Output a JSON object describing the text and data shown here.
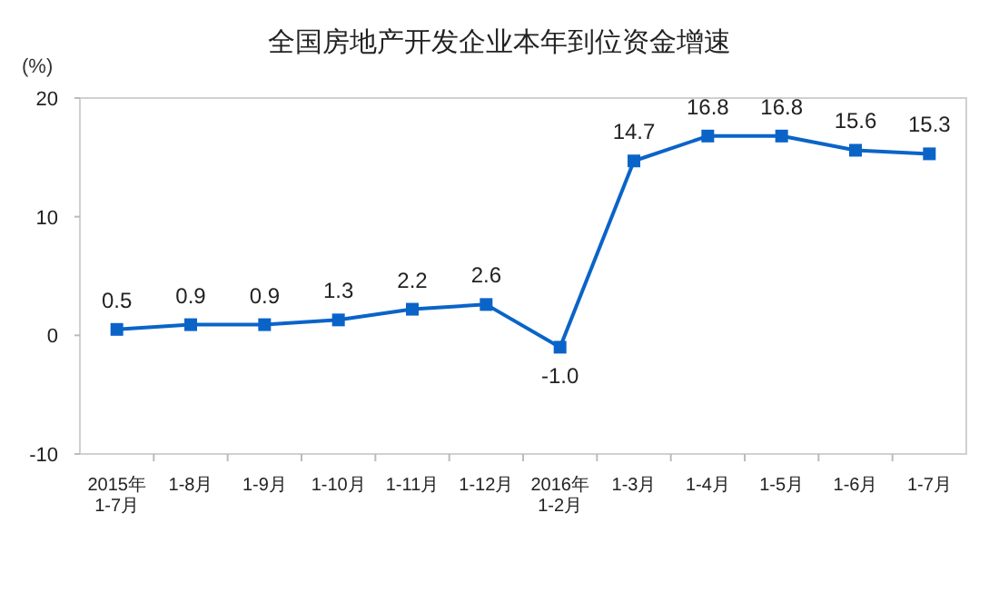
{
  "chart_data": {
    "type": "line",
    "title": "全国房地产开发企业本年到位资金增速",
    "ylabel": "(%)",
    "categories": [
      "2015年\n1-7月",
      "1-8月",
      "1-9月",
      "1-10月",
      "1-11月",
      "1-12月",
      "2016年\n1-2月",
      "1-3月",
      "1-4月",
      "1-5月",
      "1-6月",
      "1-7月"
    ],
    "series": [
      {
        "color": "#0a64c8",
        "values": [
          0.5,
          0.9,
          0.9,
          1.3,
          2.2,
          2.6,
          -1.0,
          14.7,
          16.8,
          16.8,
          15.6,
          15.3
        ],
        "value_labels": [
          "0.5",
          "0.9",
          "0.9",
          "1.3",
          "2.2",
          "2.6",
          "-1.0",
          "14.7",
          "16.8",
          "16.8",
          "15.6",
          "15.3"
        ]
      }
    ],
    "ylim": [
      -10,
      20
    ],
    "yticks": [
      -10,
      0,
      10,
      20
    ],
    "marker": "square",
    "line_style": "solid",
    "grid": false
  }
}
